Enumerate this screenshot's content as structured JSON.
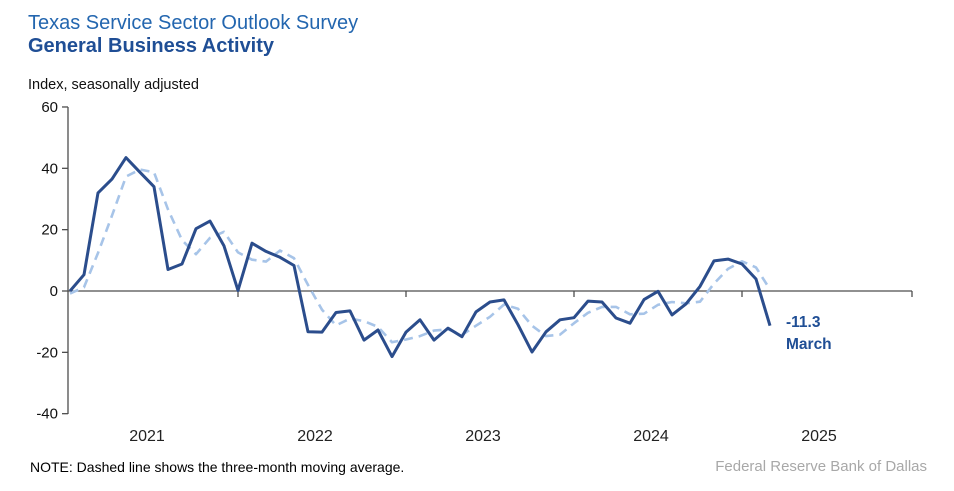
{
  "header": {
    "title": "Texas Service Sector Outlook Survey",
    "subtitle": "General Business Activity",
    "units_label": "Index, seasonally adjusted"
  },
  "chart_data": {
    "type": "line",
    "title": "Texas Service Sector Outlook Survey — General Business Activity",
    "ylabel": "Index, seasonally adjusted",
    "ylim": [
      -40,
      60
    ],
    "y_ticks": [
      60,
      40,
      20,
      0,
      -20,
      -40
    ],
    "x_tick_years": [
      "2021",
      "2022",
      "2023",
      "2024",
      "2025"
    ],
    "grid": false,
    "legend_position": "none",
    "frequency": "monthly",
    "months": [
      "2021-01",
      "2021-02",
      "2021-03",
      "2021-04",
      "2021-05",
      "2021-06",
      "2021-07",
      "2021-08",
      "2021-09",
      "2021-10",
      "2021-11",
      "2021-12",
      "2022-01",
      "2022-02",
      "2022-03",
      "2022-04",
      "2022-05",
      "2022-06",
      "2022-07",
      "2022-08",
      "2022-09",
      "2022-10",
      "2022-11",
      "2022-12",
      "2023-01",
      "2023-02",
      "2023-03",
      "2023-04",
      "2023-05",
      "2023-06",
      "2023-07",
      "2023-08",
      "2023-09",
      "2023-10",
      "2023-11",
      "2023-12",
      "2024-01",
      "2024-02",
      "2024-03",
      "2024-04",
      "2024-05",
      "2024-06",
      "2024-07",
      "2024-08",
      "2024-09",
      "2024-10",
      "2024-11",
      "2024-12",
      "2025-01",
      "2025-02",
      "2025-03"
    ],
    "series": [
      {
        "name": "General Business Activity index (monthly)",
        "style": "solid",
        "values": [
          0.0,
          5.3,
          32.0,
          36.5,
          43.5,
          38.7,
          34.0,
          7.0,
          8.8,
          20.3,
          22.8,
          14.7,
          0.2,
          15.6,
          12.9,
          11.0,
          8.3,
          -13.3,
          -13.4,
          -7.0,
          -6.5,
          -16.0,
          -12.7,
          -21.4,
          -13.4,
          -9.4,
          -16.0,
          -12.1,
          -14.9,
          -6.8,
          -3.6,
          -2.9,
          -11.0,
          -19.9,
          -13.3,
          -9.4,
          -8.7,
          -3.3,
          -3.6,
          -8.8,
          -10.5,
          -2.8,
          -0.1,
          -7.8,
          -4.2,
          1.5,
          9.8,
          10.4,
          8.8,
          3.9,
          -11.3
        ]
      },
      {
        "name": "Three-month moving average",
        "style": "dashed",
        "values": [
          -0.8,
          1.2,
          12.4,
          24.6,
          37.3,
          39.6,
          38.7,
          26.6,
          16.6,
          12.0,
          17.3,
          19.3,
          12.6,
          10.2,
          9.6,
          13.2,
          10.7,
          2.0,
          -6.1,
          -11.2,
          -9.0,
          -9.8,
          -11.7,
          -16.7,
          -15.8,
          -14.7,
          -12.9,
          -12.5,
          -14.3,
          -11.3,
          -8.4,
          -4.4,
          -5.8,
          -11.3,
          -14.7,
          -14.2,
          -10.5,
          -7.1,
          -5.2,
          -5.2,
          -7.6,
          -7.4,
          -4.5,
          -3.6,
          -4.0,
          -3.5,
          2.4,
          7.2,
          9.7,
          7.7,
          0.5
        ]
      }
    ],
    "last_point_label": {
      "value": "-11.3",
      "month": "March"
    }
  },
  "annotation": {
    "value_label": "-11.3",
    "month_label": "March"
  },
  "note": "NOTE: Dashed line shows the three-month moving average.",
  "attribution": "Federal Reserve Bank of Dallas",
  "colors": {
    "title": "#2366AF",
    "subtitle": "#1F4E95",
    "line": "#2B4D8C",
    "moving_average": "#A7C4E8",
    "axis": "#4D4D4D",
    "annotation": "#1F4E95",
    "attribution": "#A8A8A8"
  }
}
